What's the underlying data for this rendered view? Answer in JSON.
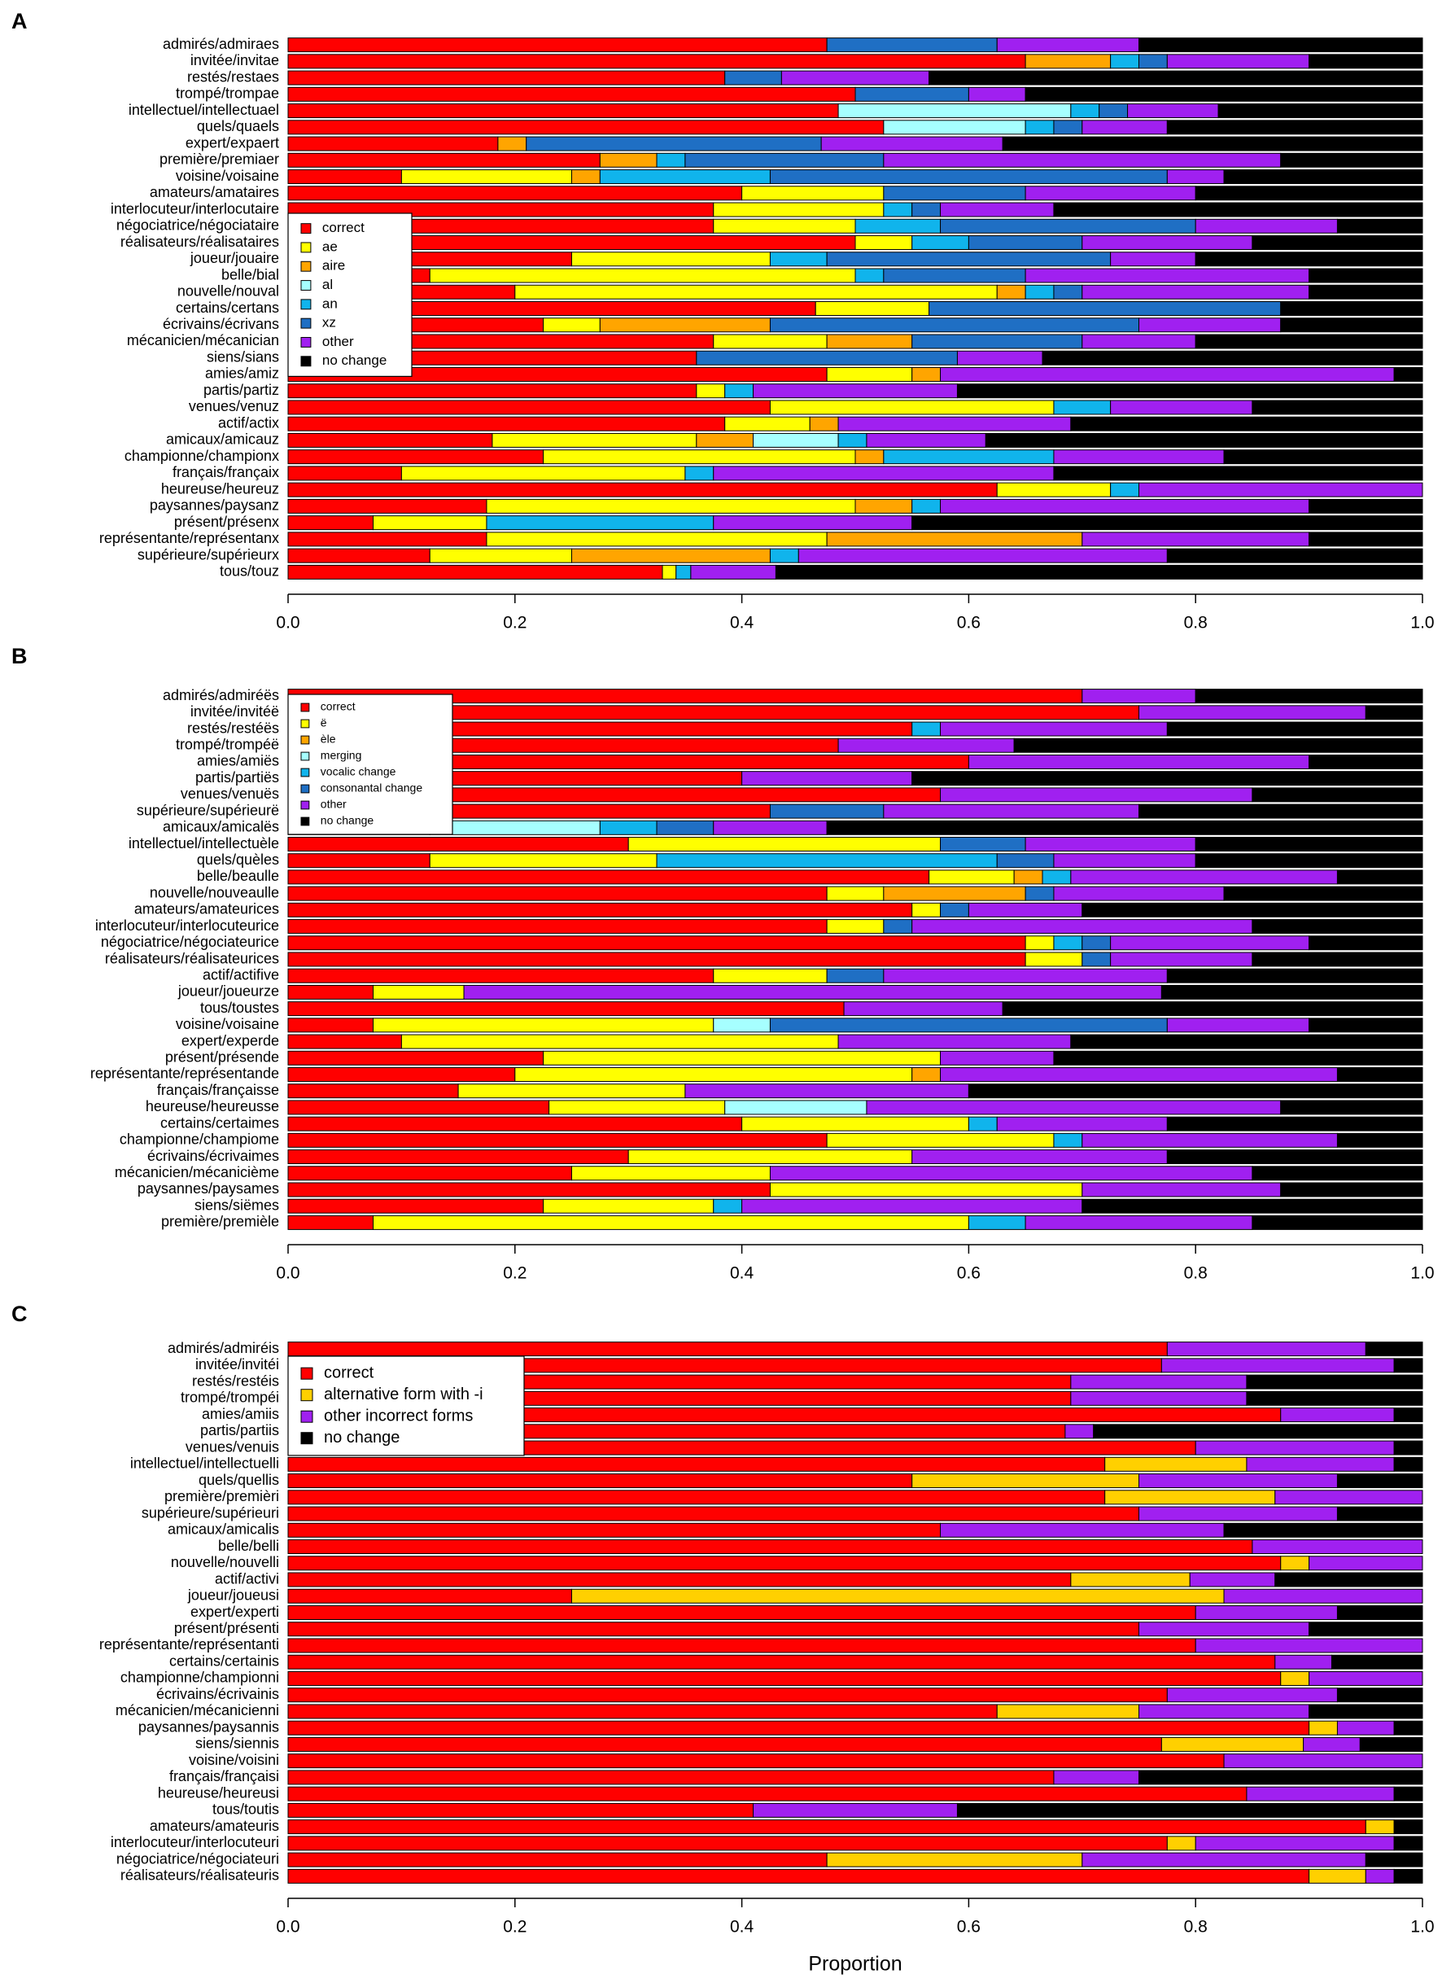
{
  "chart_data": [
    {
      "type": "stacked_barh",
      "label": "A",
      "categories": [
        "admirés/admiraes",
        "invitée/invitae",
        "restés/restaes",
        "trompé/trompae",
        "intellectuel/intellectuael",
        "quels/quaels",
        "expert/expaert",
        "première/premiaer",
        "voisine/voisaine",
        "amateurs/amataires",
        "interlocuteur/interlocutaire",
        "négociatrice/négociataire",
        "réalisateurs/réalisataires",
        "joueur/jouaire",
        "belle/bial",
        "nouvelle/nouval",
        "certains/certans",
        "écrivains/écrivans",
        "mécanicien/mécanician",
        "siens/sians",
        "amies/amiz",
        "partis/partiz",
        "venues/venuz",
        "actif/actix",
        "amicaux/amicauz",
        "championne/championx",
        "français/françaix",
        "heureuse/heureuz",
        "paysannes/paysanz",
        "présent/présenx",
        "représentante/représentanx",
        "supérieure/supérieurx",
        "tous/touz"
      ],
      "series": [
        {
          "name": "correct",
          "color": "#ff0000",
          "values": [
            0.475,
            0.65,
            0.385,
            0.5,
            0.485,
            0.525,
            0.185,
            0.275,
            0.1,
            0.4,
            0.375,
            0.375,
            0.5,
            0.25,
            0.125,
            0.2,
            0.465,
            0.225,
            0.375,
            0.36,
            0.475,
            0.36,
            0.425,
            0.385,
            0.18,
            0.225,
            0.1,
            0.625,
            0.175,
            0.075,
            0.175,
            0.125,
            0.33
          ]
        },
        {
          "name": "ae",
          "color": "#ffff00",
          "values": [
            0,
            0,
            0,
            0,
            0,
            0,
            0,
            0,
            0.15,
            0.125,
            0.15,
            0.125,
            0.05,
            0.175,
            0.375,
            0.425,
            0.1,
            0.05,
            0.1,
            0,
            0.075,
            0.025,
            0.25,
            0.075,
            0.18,
            0.275,
            0.25,
            0.1,
            0.325,
            0.1,
            0.3,
            0.125,
            0.012
          ]
        },
        {
          "name": "aire",
          "color": "#ffa500",
          "values": [
            0,
            0.075,
            0,
            0,
            0,
            0,
            0.025,
            0.05,
            0.025,
            0,
            0,
            0,
            0,
            0,
            0,
            0.025,
            0,
            0.15,
            0.075,
            0,
            0.025,
            0,
            0,
            0.025,
            0.05,
            0.025,
            0,
            0,
            0.05,
            0,
            0.225,
            0.175,
            0
          ]
        },
        {
          "name": "al",
          "color": "#a6ffff",
          "values": [
            0,
            0,
            0,
            0,
            0.205,
            0.125,
            0,
            0,
            0,
            0,
            0,
            0,
            0,
            0,
            0,
            0,
            0,
            0,
            0,
            0,
            0,
            0,
            0,
            0,
            0.075,
            0,
            0,
            0,
            0,
            0,
            0,
            0,
            0
          ]
        },
        {
          "name": "an",
          "color": "#10b4ec",
          "values": [
            0,
            0.025,
            0,
            0,
            0.025,
            0.025,
            0,
            0.025,
            0.15,
            0,
            0.025,
            0.075,
            0.05,
            0.05,
            0.025,
            0.025,
            0,
            0,
            0,
            0,
            0,
            0.025,
            0.05,
            0,
            0.025,
            0.15,
            0.025,
            0.025,
            0.025,
            0.2,
            0,
            0.025,
            0.013
          ]
        },
        {
          "name": "xz",
          "color": "#1f6fc4",
          "values": [
            0.15,
            0.025,
            0.05,
            0.1,
            0.025,
            0.025,
            0.26,
            0.175,
            0.35,
            0.125,
            0.025,
            0.225,
            0.1,
            0.25,
            0.125,
            0.025,
            0.31,
            0.325,
            0.15,
            0.23,
            0,
            0,
            0,
            0,
            0,
            0,
            0,
            0,
            0,
            0,
            0,
            0,
            0
          ]
        },
        {
          "name": "other",
          "color": "#a020f0",
          "values": [
            0.125,
            0.125,
            0.13,
            0.05,
            0.08,
            0.075,
            0.16,
            0.35,
            0.05,
            0.15,
            0.1,
            0.125,
            0.15,
            0.075,
            0.25,
            0.2,
            0,
            0.125,
            0.1,
            0.075,
            0.4,
            0.18,
            0.125,
            0.205,
            0.105,
            0.15,
            0.3,
            0.25,
            0.325,
            0.175,
            0.2,
            0.325,
            0.075
          ]
        },
        {
          "name": "no change",
          "color": "#000000",
          "values": [
            0.25,
            0.1,
            0.435,
            0.35,
            0.18,
            0.225,
            0.37,
            0.125,
            0.175,
            0.2,
            0.325,
            0.075,
            0.15,
            0.2,
            0.1,
            0.1,
            0.125,
            0.125,
            0.2,
            0.335,
            0.025,
            0.41,
            0.15,
            0.31,
            0.385,
            0.175,
            0.325,
            0,
            0.1,
            0.45,
            0.1,
            0.225,
            0.57
          ]
        }
      ],
      "xlim": [
        0,
        1
      ],
      "xticks": [
        {
          "value": 0,
          "label": "0.0"
        },
        0.2,
        0.4,
        0.6,
        0.8,
        {
          "value": 1,
          "label": "1.0"
        }
      ]
    },
    {
      "type": "stacked_barh",
      "label": "B",
      "categories": [
        "admirés/admiréës",
        "invitée/invitéë",
        "restés/restéës",
        "trompé/trompéë",
        "amies/amiës",
        "partis/partiës",
        "venues/venuës",
        "supérieure/supérieurë",
        "amicaux/amicalës",
        "intellectuel/intellectuèle",
        "quels/quèles",
        "belle/beaulle",
        "nouvelle/nouveaulle",
        "amateurs/amateurices",
        "interlocuteur/interlocuteurice",
        "négociatrice/négociateurice",
        "réalisateurs/réalisateurices",
        "actif/actifive",
        "joueur/joueurze",
        "tous/toustes",
        "voisine/voisaine",
        "expert/experde",
        "présent/présende",
        "représentante/représentande",
        "français/françaisse",
        "heureuse/heureusse",
        "certains/certaimes",
        "championne/champiome",
        "écrivains/écrivaimes",
        "mécanicien/mécanicième",
        "paysannes/paysames",
        "siens/siëmes",
        "première/premièle"
      ],
      "series": [
        {
          "name": "correct",
          "color": "#ff0000",
          "values": [
            0.7,
            0.75,
            0.55,
            0.485,
            0.6,
            0.4,
            0.575,
            0.425,
            0.125,
            0.3,
            0.125,
            0.565,
            0.475,
            0.55,
            0.475,
            0.65,
            0.65,
            0.375,
            0.075,
            0.49,
            0.075,
            0.1,
            0.225,
            0.2,
            0.15,
            0.23,
            0.4,
            0.475,
            0.3,
            0.25,
            0.425,
            0.225,
            0.075
          ]
        },
        {
          "name": "ë",
          "color": "#ffff00",
          "values": [
            0,
            0,
            0,
            0,
            0,
            0,
            0,
            0,
            0,
            0.275,
            0.2,
            0.075,
            0.05,
            0.025,
            0.05,
            0.025,
            0.05,
            0.1,
            0.08,
            0,
            0.3,
            0.385,
            0.35,
            0.35,
            0.2,
            0.155,
            0.2,
            0.2,
            0.25,
            0.175,
            0.275,
            0.15,
            0.525
          ]
        },
        {
          "name": "èle",
          "color": "#ffa500",
          "values": [
            0,
            0,
            0,
            0,
            0,
            0,
            0,
            0,
            0,
            0,
            0,
            0.025,
            0.125,
            0,
            0,
            0,
            0,
            0,
            0,
            0,
            0,
            0,
            0,
            0.025,
            0,
            0,
            0,
            0,
            0,
            0,
            0,
            0,
            0
          ]
        },
        {
          "name": "merging",
          "color": "#a6ffff",
          "values": [
            0,
            0,
            0,
            0,
            0,
            0,
            0,
            0,
            0.15,
            0,
            0,
            0,
            0,
            0,
            0,
            0,
            0,
            0,
            0,
            0,
            0.05,
            0,
            0,
            0,
            0,
            0.125,
            0,
            0,
            0,
            0,
            0,
            0,
            0
          ]
        },
        {
          "name": "vocalic change",
          "color": "#10b4ec",
          "values": [
            0,
            0,
            0.025,
            0,
            0,
            0,
            0,
            0,
            0.05,
            0,
            0.3,
            0.025,
            0,
            0,
            0,
            0.025,
            0,
            0,
            0,
            0,
            0,
            0,
            0,
            0,
            0,
            0,
            0.025,
            0.025,
            0,
            0,
            0,
            0.025,
            0.05
          ]
        },
        {
          "name": "consonantal change",
          "color": "#1f6fc4",
          "values": [
            0,
            0,
            0,
            0,
            0,
            0,
            0,
            0.1,
            0.05,
            0.075,
            0.05,
            0,
            0.025,
            0.025,
            0.025,
            0.025,
            0.025,
            0.05,
            0,
            0,
            0.35,
            0,
            0,
            0,
            0,
            0,
            0,
            0,
            0,
            0,
            0,
            0,
            0
          ]
        },
        {
          "name": "other",
          "color": "#a020f0",
          "values": [
            0.1,
            0.2,
            0.2,
            0.155,
            0.3,
            0.15,
            0.275,
            0.225,
            0.1,
            0.15,
            0.125,
            0.235,
            0.15,
            0.1,
            0.3,
            0.175,
            0.125,
            0.25,
            0.615,
            0.14,
            0.125,
            0.205,
            0.1,
            0.35,
            0.25,
            0.365,
            0.15,
            0.225,
            0.225,
            0.425,
            0.175,
            0.3,
            0.2
          ]
        },
        {
          "name": "no change",
          "color": "#000000",
          "values": [
            0.2,
            0.05,
            0.225,
            0.36,
            0.1,
            0.45,
            0.15,
            0.25,
            0.525,
            0.2,
            0.2,
            0.075,
            0.175,
            0.3,
            0.15,
            0.1,
            0.15,
            0.225,
            0.23,
            0.37,
            0.1,
            0.31,
            0.325,
            0.075,
            0.4,
            0.125,
            0.225,
            0.075,
            0.225,
            0.15,
            0.125,
            0.3,
            0.15
          ]
        }
      ],
      "xlim": [
        0,
        1
      ],
      "xticks": [
        {
          "value": 0,
          "label": "0.0"
        },
        0.2,
        0.4,
        0.6,
        0.8,
        {
          "value": 1,
          "label": "1.0"
        }
      ]
    },
    {
      "type": "stacked_barh",
      "label": "C",
      "xlabel": "Proportion",
      "categories": [
        "admirés/admiréis",
        "invitée/invitéi",
        "restés/restéis",
        "trompé/trompéi",
        "amies/amiis",
        "partis/partiis",
        "venues/venuis",
        "intellectuel/intellectuelli",
        "quels/quellis",
        "première/premièri",
        "supérieure/supérieuri",
        "amicaux/amicalis",
        "belle/belli",
        "nouvelle/nouvelli",
        "actif/activi",
        "joueur/joueusi",
        "expert/experti",
        "présent/présenti",
        "représentante/représentanti",
        "certains/certainis",
        "championne/championni",
        "écrivains/écrivainis",
        "mécanicien/mécanicienni",
        "paysannes/paysannis",
        "siens/siennis",
        "voisine/voisini",
        "français/françaisi",
        "heureuse/heureusi",
        "tous/toutis",
        "amateurs/amateuris",
        "interlocuteur/interlocuteuri",
        "négociatrice/négociateuri",
        "réalisateurs/réalisateuris"
      ],
      "series": [
        {
          "name": "correct",
          "color": "#ff0000",
          "values": [
            0.775,
            0.77,
            0.69,
            0.69,
            0.875,
            0.685,
            0.8,
            0.72,
            0.55,
            0.72,
            0.75,
            0.575,
            0.85,
            0.875,
            0.69,
            0.25,
            0.8,
            0.75,
            0.8,
            0.87,
            0.875,
            0.775,
            0.625,
            0.9,
            0.77,
            0.825,
            0.675,
            0.845,
            0.41,
            0.95,
            0.775,
            0.475,
            0.9
          ]
        },
        {
          "name": "alternative form with -i",
          "color": "#ffd000",
          "values": [
            0,
            0,
            0,
            0,
            0,
            0,
            0,
            0.125,
            0.2,
            0.15,
            0,
            0,
            0,
            0.025,
            0.105,
            0.575,
            0,
            0,
            0,
            0,
            0.025,
            0,
            0.125,
            0.025,
            0.125,
            0,
            0,
            0,
            0,
            0.025,
            0.025,
            0.225,
            0.05
          ]
        },
        {
          "name": "other incorrect forms",
          "color": "#a020f0",
          "values": [
            0.175,
            0.205,
            0.155,
            0.155,
            0.1,
            0.025,
            0.175,
            0.13,
            0.175,
            0.13,
            0.175,
            0.25,
            0.15,
            0.1,
            0.075,
            0.175,
            0.125,
            0.15,
            0.2,
            0.05,
            0.1,
            0.15,
            0.15,
            0.05,
            0.05,
            0.175,
            0.075,
            0.13,
            0.18,
            0,
            0.175,
            0.25,
            0.025
          ]
        },
        {
          "name": "no change",
          "color": "#000000",
          "values": [
            0.05,
            0.025,
            0.155,
            0.155,
            0.025,
            0.29,
            0.025,
            0.025,
            0.075,
            0,
            0.075,
            0.175,
            0,
            0,
            0.13,
            0,
            0.075,
            0.1,
            0,
            0.08,
            0,
            0.075,
            0.1,
            0.025,
            0.055,
            0,
            0.25,
            0.025,
            0.41,
            0.025,
            0.025,
            0.05,
            0.025
          ]
        }
      ],
      "xlim": [
        0,
        1
      ],
      "xticks": [
        {
          "value": 0,
          "label": "0.0"
        },
        0.2,
        0.4,
        0.6,
        0.8,
        {
          "value": 1,
          "label": "1.0"
        }
      ]
    }
  ]
}
